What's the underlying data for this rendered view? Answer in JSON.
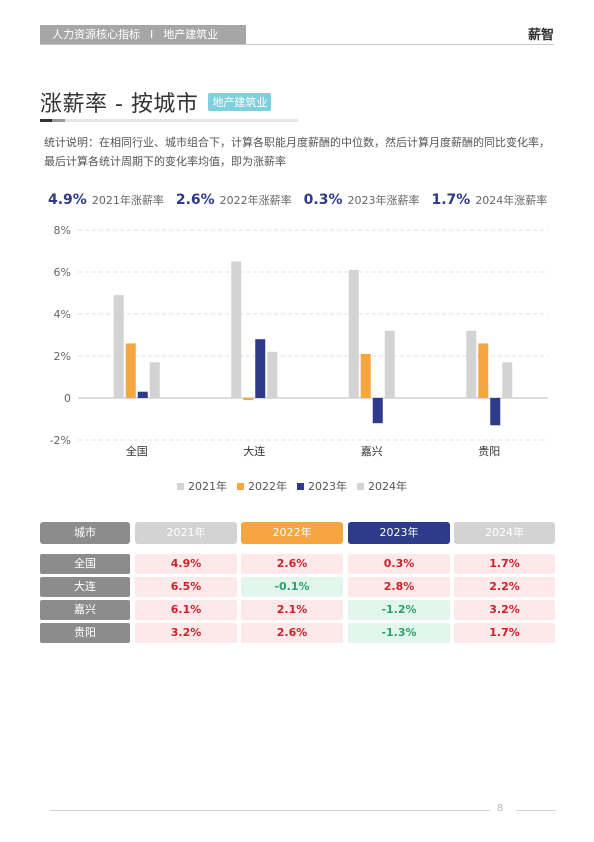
{
  "header": {
    "section": "人力资源核心指标",
    "separator": "I",
    "industry": "地产建筑业",
    "brand": "薪智"
  },
  "title": {
    "text": "涨薪率 - 按城市",
    "badge": "地产建筑业"
  },
  "note": "统计说明：在相同行业、城市组合下，计算各职能月度薪酬的中位数，然后计算月度薪酬的同比变化率，最后计算各统计周期下的变化率均值，即为涨薪率",
  "summary": [
    {
      "value": "4.9%",
      "label": "2021年涨薪率"
    },
    {
      "value": "2.6%",
      "label": "2022年涨薪率"
    },
    {
      "value": "0.3%",
      "label": "2023年涨薪率"
    },
    {
      "value": "1.7%",
      "label": "2024年涨薪率"
    }
  ],
  "chart_data": {
    "type": "bar",
    "categories": [
      "全国",
      "大连",
      "嘉兴",
      "贵阳"
    ],
    "series": [
      {
        "name": "2021年",
        "values": [
          4.9,
          6.5,
          6.1,
          3.2
        ],
        "color": "#d3d3d3"
      },
      {
        "name": "2022年",
        "values": [
          2.6,
          -0.1,
          2.1,
          2.6
        ],
        "color": "#f5a640"
      },
      {
        "name": "2023年",
        "values": [
          0.3,
          2.8,
          -1.2,
          -1.3
        ],
        "color": "#2e3a8c"
      },
      {
        "name": "2024年",
        "values": [
          1.7,
          2.2,
          3.2,
          1.7
        ],
        "color": "#d3d3d3"
      }
    ],
    "yticks": [
      "8%",
      "6%",
      "4%",
      "2%",
      "0",
      "-2%"
    ],
    "ylim": [
      -2,
      8
    ],
    "grid": true,
    "legend": "bottom"
  },
  "table": {
    "corner": "城市",
    "headers": [
      {
        "label": "2021年",
        "color": "#d3d3d3"
      },
      {
        "label": "2022年",
        "color": "#f5a640"
      },
      {
        "label": "2023年",
        "color": "#2e3a8c"
      },
      {
        "label": "2024年",
        "color": "#d3d3d3"
      }
    ],
    "rows": [
      {
        "city": "全国",
        "values": [
          "4.9%",
          "2.6%",
          "0.3%",
          "1.7%"
        ]
      },
      {
        "city": "大连",
        "values": [
          "6.5%",
          "-0.1%",
          "2.8%",
          "2.2%"
        ]
      },
      {
        "city": "嘉兴",
        "values": [
          "6.1%",
          "2.1%",
          "-1.2%",
          "3.2%"
        ]
      },
      {
        "city": "贵阳",
        "values": [
          "3.2%",
          "2.6%",
          "-1.3%",
          "1.7%"
        ]
      }
    ]
  },
  "footer": {
    "page": "8"
  }
}
